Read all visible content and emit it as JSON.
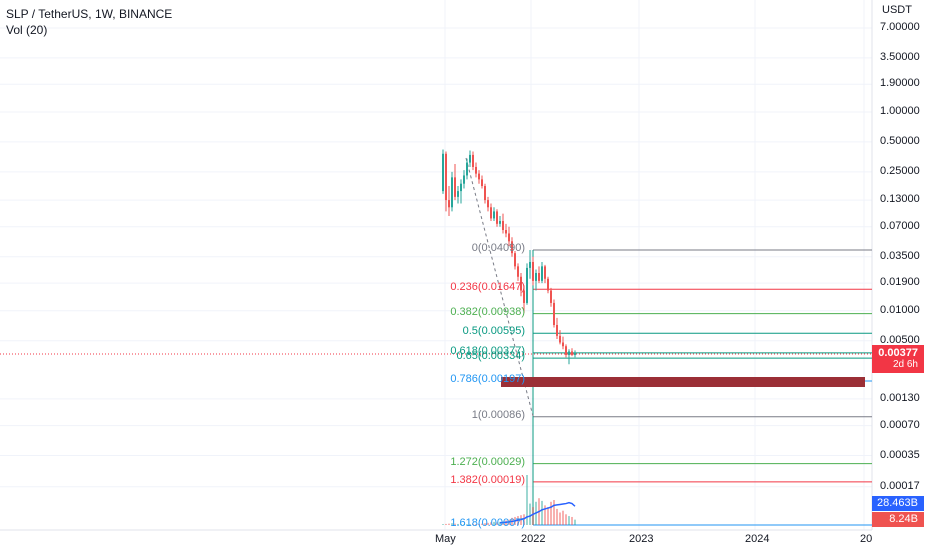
{
  "header": {
    "symbol_line": "SLP / TetherUS, 1W, BINANCE",
    "volume_line": "Vol (20)"
  },
  "colors": {
    "up": "#26a69a",
    "down": "#ef5350",
    "vol_up": "rgba(38,166,154,0.45)",
    "vol_down": "rgba(239,83,80,0.45)",
    "ma": "#2962ff",
    "zone": "#9b2f36"
  },
  "chart_data": {
    "type": "candlestick",
    "title": "SLP / TetherUS, 1W, BINANCE",
    "y_axis": {
      "unit": "USDT",
      "scale": "log",
      "ticks": [
        "7.00000",
        "3.50000",
        "1.90000",
        "1.00000",
        "0.50000",
        "0.25000",
        "0.13000",
        "0.07000",
        "0.03500",
        "0.01900",
        "0.01000",
        "0.00500",
        "0.00130",
        "0.00070",
        "0.00035",
        "0.00017"
      ]
    },
    "x_axis": {
      "ticks": [
        "May",
        "2022",
        "2023",
        "2024",
        "20"
      ]
    },
    "last_price": "0.00377",
    "countdown": "2d 6h",
    "volume_labels": [
      "28.463B",
      "8.24B"
    ],
    "fib_levels": [
      {
        "label": "0(0.04090)",
        "value": 0.0409,
        "color": "#787b86"
      },
      {
        "label": "0.236(0.01647)",
        "value": 0.01647,
        "color": "#f23645"
      },
      {
        "label": "0.382(0.00938)",
        "value": 0.00938,
        "color": "#4caf50"
      },
      {
        "label": "0.5(0.00595)",
        "value": 0.00595,
        "color": "#089981"
      },
      {
        "label": "0.618(0.00377)",
        "value": 0.00377,
        "color": "#089981"
      },
      {
        "label": "0.65(0.00334)",
        "value": 0.00334,
        "color": "#089981"
      },
      {
        "label": "0.786(0.00197)",
        "value": 0.00197,
        "color": "#2196f3"
      },
      {
        "label": "1(0.00086)",
        "value": 0.00086,
        "color": "#787b86"
      },
      {
        "label": "1.272(0.00029)",
        "value": 0.00029,
        "color": "#4caf50"
      },
      {
        "label": "1.382(0.00019)",
        "value": 0.00019,
        "color": "#f23645"
      },
      {
        "label": "1.618(0.00007)",
        "value": 7e-05,
        "color": "#2196f3"
      }
    ],
    "candles": [
      {
        "o": 0.16,
        "h": 0.42,
        "l": 0.15,
        "c": 0.38
      },
      {
        "o": 0.38,
        "h": 0.4,
        "l": 0.1,
        "c": 0.13
      },
      {
        "o": 0.13,
        "h": 0.18,
        "l": 0.09,
        "c": 0.11
      },
      {
        "o": 0.11,
        "h": 0.25,
        "l": 0.1,
        "c": 0.22
      },
      {
        "o": 0.22,
        "h": 0.3,
        "l": 0.13,
        "c": 0.14
      },
      {
        "o": 0.14,
        "h": 0.18,
        "l": 0.12,
        "c": 0.16
      },
      {
        "o": 0.16,
        "h": 0.21,
        "l": 0.12,
        "c": 0.19
      },
      {
        "o": 0.19,
        "h": 0.26,
        "l": 0.17,
        "c": 0.23
      },
      {
        "o": 0.23,
        "h": 0.34,
        "l": 0.21,
        "c": 0.31
      },
      {
        "o": 0.31,
        "h": 0.41,
        "l": 0.28,
        "c": 0.37
      },
      {
        "o": 0.37,
        "h": 0.4,
        "l": 0.26,
        "c": 0.28
      },
      {
        "o": 0.28,
        "h": 0.31,
        "l": 0.22,
        "c": 0.24
      },
      {
        "o": 0.24,
        "h": 0.26,
        "l": 0.19,
        "c": 0.21
      },
      {
        "o": 0.21,
        "h": 0.23,
        "l": 0.17,
        "c": 0.18
      },
      {
        "o": 0.18,
        "h": 0.19,
        "l": 0.12,
        "c": 0.13
      },
      {
        "o": 0.13,
        "h": 0.14,
        "l": 0.1,
        "c": 0.11
      },
      {
        "o": 0.11,
        "h": 0.12,
        "l": 0.08,
        "c": 0.085
      },
      {
        "o": 0.085,
        "h": 0.11,
        "l": 0.08,
        "c": 0.1
      },
      {
        "o": 0.1,
        "h": 0.105,
        "l": 0.07,
        "c": 0.075
      },
      {
        "o": 0.075,
        "h": 0.09,
        "l": 0.07,
        "c": 0.08
      },
      {
        "o": 0.08,
        "h": 0.095,
        "l": 0.06,
        "c": 0.065
      },
      {
        "o": 0.065,
        "h": 0.075,
        "l": 0.055,
        "c": 0.06
      },
      {
        "o": 0.06,
        "h": 0.07,
        "l": 0.045,
        "c": 0.05
      },
      {
        "o": 0.05,
        "h": 0.055,
        "l": 0.035,
        "c": 0.038
      },
      {
        "o": 0.038,
        "h": 0.04,
        "l": 0.026,
        "c": 0.028
      },
      {
        "o": 0.028,
        "h": 0.03,
        "l": 0.02,
        "c": 0.022
      },
      {
        "o": 0.022,
        "h": 0.024,
        "l": 0.014,
        "c": 0.016
      },
      {
        "o": 0.016,
        "h": 0.018,
        "l": 0.0095,
        "c": 0.012
      },
      {
        "o": 0.012,
        "h": 0.03,
        "l": 0.0115,
        "c": 0.027
      },
      {
        "o": 0.027,
        "h": 0.0409,
        "l": 0.021,
        "c": 0.031
      },
      {
        "o": 0.031,
        "h": 0.035,
        "l": 0.018,
        "c": 0.02
      },
      {
        "o": 0.02,
        "h": 0.026,
        "l": 0.016,
        "c": 0.024
      },
      {
        "o": 0.024,
        "h": 0.028,
        "l": 0.019,
        "c": 0.02
      },
      {
        "o": 0.02,
        "h": 0.031,
        "l": 0.019,
        "c": 0.028
      },
      {
        "o": 0.028,
        "h": 0.029,
        "l": 0.019,
        "c": 0.021
      },
      {
        "o": 0.021,
        "h": 0.022,
        "l": 0.015,
        "c": 0.016
      },
      {
        "o": 0.016,
        "h": 0.017,
        "l": 0.011,
        "c": 0.012
      },
      {
        "o": 0.012,
        "h": 0.013,
        "l": 0.0068,
        "c": 0.0072
      },
      {
        "o": 0.0072,
        "h": 0.0085,
        "l": 0.0052,
        "c": 0.0056
      },
      {
        "o": 0.0056,
        "h": 0.0064,
        "l": 0.0046,
        "c": 0.0048
      },
      {
        "o": 0.0048,
        "h": 0.0055,
        "l": 0.0041,
        "c": 0.0044
      },
      {
        "o": 0.0044,
        "h": 0.0046,
        "l": 0.0034,
        "c": 0.0036
      },
      {
        "o": 0.0036,
        "h": 0.0041,
        "l": 0.0029,
        "c": 0.0039
      },
      {
        "o": 0.0039,
        "h": 0.0042,
        "l": 0.0035,
        "c": 0.0036
      },
      {
        "o": 0.0036,
        "h": 0.004,
        "l": 0.0034,
        "c": 0.00377
      }
    ],
    "volume": [
      1,
      1.2,
      1.5,
      2,
      1.5,
      1.2,
      1,
      0.8,
      0.9,
      0.9,
      1.1,
      1,
      1.2,
      1.5,
      2,
      2.4,
      3,
      3.5,
      2.8,
      3.5,
      4,
      5,
      6,
      8,
      9,
      10,
      11,
      12,
      56,
      24,
      20,
      26,
      30,
      27,
      22,
      20,
      26,
      28,
      18,
      14,
      16,
      12,
      10,
      9,
      6
    ],
    "vol_ma": [
      null,
      null,
      null,
      null,
      null,
      null,
      null,
      null,
      null,
      null,
      null,
      null,
      null,
      null,
      null,
      null,
      null,
      null,
      null,
      2.5,
      2.8,
      3.1,
      3.5,
      4,
      4.6,
      5.5,
      6.2,
      7,
      9,
      10,
      12,
      13.5,
      15,
      17,
      18,
      19,
      20,
      22,
      22.5,
      23,
      23.5,
      24,
      25,
      24,
      21
    ]
  }
}
